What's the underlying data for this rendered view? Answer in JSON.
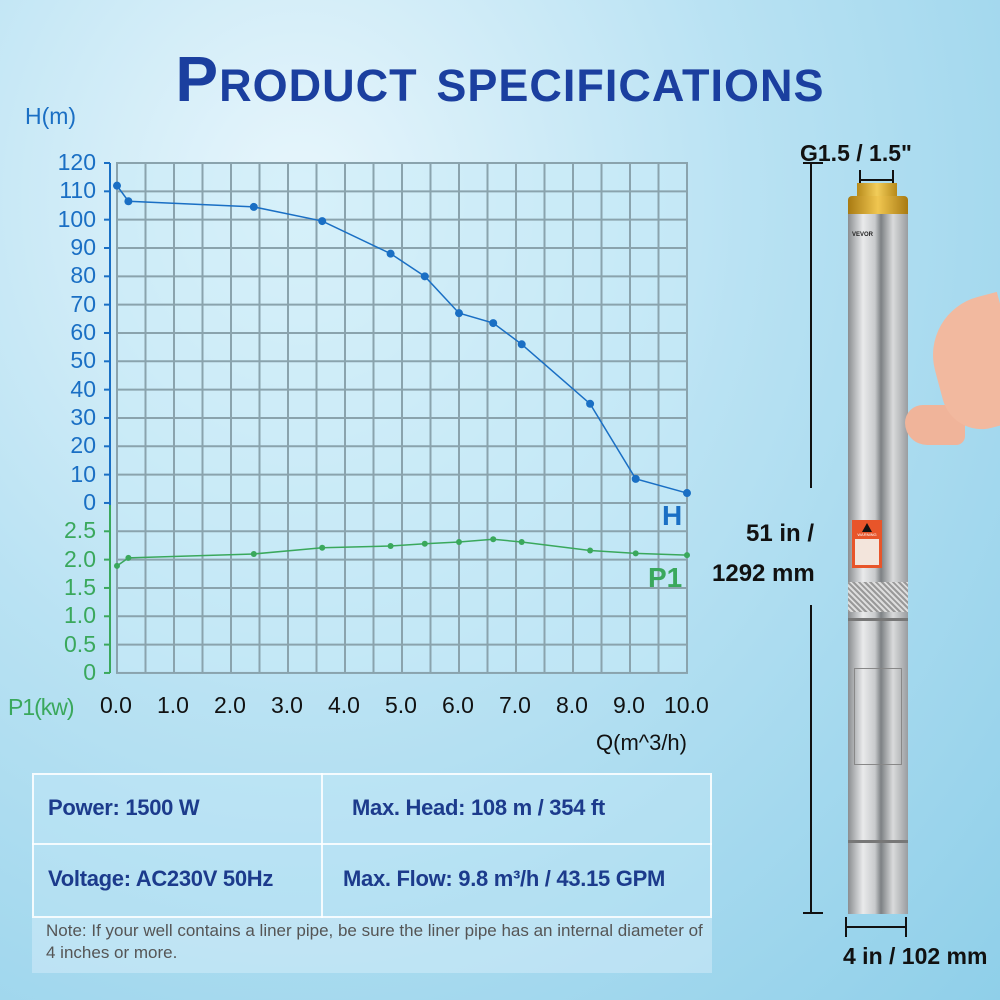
{
  "title": "Product specifications",
  "chart_data": {
    "type": "line",
    "xlabel": "Q(m^3/h)",
    "x_ticks": [
      "0.0",
      "1.0",
      "2.0",
      "3.0",
      "4.0",
      "5.0",
      "6.0",
      "7.0",
      "8.0",
      "9.0",
      "10.0"
    ],
    "xlim": [
      0,
      10
    ],
    "grid": true,
    "colors": {
      "H": "#1a6fc4",
      "P1": "#3aa85c"
    },
    "axes": [
      {
        "series": "H",
        "ylabel": "H(m)",
        "ylim": [
          0,
          120
        ],
        "ticks": [
          "120",
          "110",
          "100",
          "90",
          "80",
          "70",
          "60",
          "50",
          "40",
          "30",
          "20",
          "10",
          "0"
        ]
      },
      {
        "series": "P1",
        "ylabel": "P1(kw)",
        "ylim": [
          0,
          2.5
        ],
        "ticks": [
          "2.5",
          "2.0",
          "1.5",
          "1.0",
          "0.5",
          "0"
        ]
      }
    ],
    "series": [
      {
        "name": "H",
        "x": [
          0.0,
          0.2,
          2.4,
          3.6,
          4.8,
          5.4,
          6.0,
          6.6,
          7.1,
          8.3,
          9.1,
          10.0
        ],
        "values": [
          112,
          106.5,
          104.5,
          99.5,
          88,
          80,
          67,
          63.5,
          56,
          35,
          8.5,
          3.5
        ]
      },
      {
        "name": "P1",
        "x": [
          0.0,
          0.2,
          2.4,
          3.6,
          4.8,
          5.4,
          6.0,
          6.6,
          7.1,
          8.3,
          9.1,
          10.0
        ],
        "values": [
          1.89,
          2.03,
          2.1,
          2.21,
          2.24,
          2.28,
          2.31,
          2.36,
          2.31,
          2.16,
          2.11,
          2.08
        ]
      }
    ]
  },
  "specs": {
    "power": "Power: 1500 W",
    "max_head": "Max. Head: 108 m / 354 ft",
    "voltage": "Voltage: AC230V 50Hz",
    "max_flow": "Max. Flow: 9.8 m³/h / 43.15 GPM",
    "note": "Note: If your well contains a liner pipe, be sure the liner pipe has an internal diameter of 4 inches or more."
  },
  "product": {
    "outlet": "G1.5 / 1.5\"",
    "length_in": "51 in /",
    "length_mm": "1292 mm",
    "diameter": "4 in / 102 mm",
    "brand": "VEVOR",
    "warning": "WARNING"
  }
}
